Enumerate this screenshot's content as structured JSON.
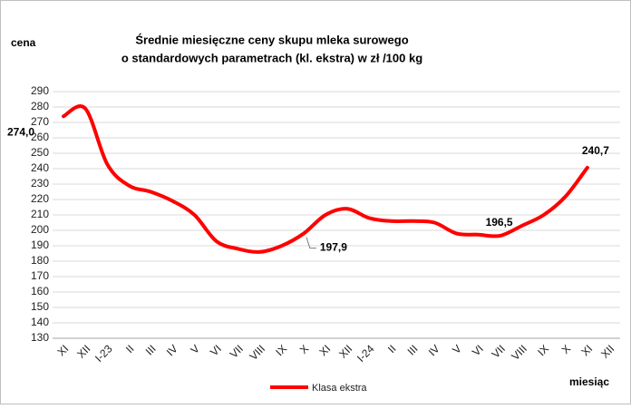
{
  "chart_data": {
    "type": "line",
    "title": [
      "Średnie miesięczne ceny skupu mleka surowego",
      "o standardowych parametrach (kl. ekstra) w zł /100 kg"
    ],
    "y_axis_label": "cena",
    "x_axis_label": "miesiąc",
    "categories": [
      "XI",
      "XII",
      "I-23",
      "II",
      "III",
      "IV",
      "V",
      "VI",
      "VII",
      "VIII",
      "IX",
      "X",
      "XI",
      "XII",
      "I-24",
      "II",
      "III",
      "IV",
      "V",
      "VI",
      "VII",
      "VIII",
      "IX",
      "X",
      "XI",
      "XII"
    ],
    "series": [
      {
        "name": "Klasa ekstra",
        "color": "#ff0000",
        "values": [
          274.0,
          279,
          243,
          229,
          225,
          219,
          210,
          193,
          188,
          186,
          190,
          197.9,
          210,
          214,
          208,
          206,
          206,
          205,
          198,
          197.2,
          196.5,
          203,
          210,
          222,
          240.7,
          null
        ],
        "value_labels": [
          "274,0",
          null,
          null,
          null,
          null,
          null,
          null,
          null,
          null,
          null,
          null,
          "197,9",
          null,
          null,
          null,
          null,
          null,
          null,
          null,
          null,
          "196,5",
          null,
          null,
          null,
          "240,7",
          null
        ]
      }
    ],
    "ylim": [
      130,
      290
    ],
    "yticks": [
      130,
      140,
      150,
      160,
      170,
      180,
      190,
      200,
      210,
      220,
      230,
      240,
      250,
      260,
      270,
      280,
      290
    ],
    "grid": true
  }
}
